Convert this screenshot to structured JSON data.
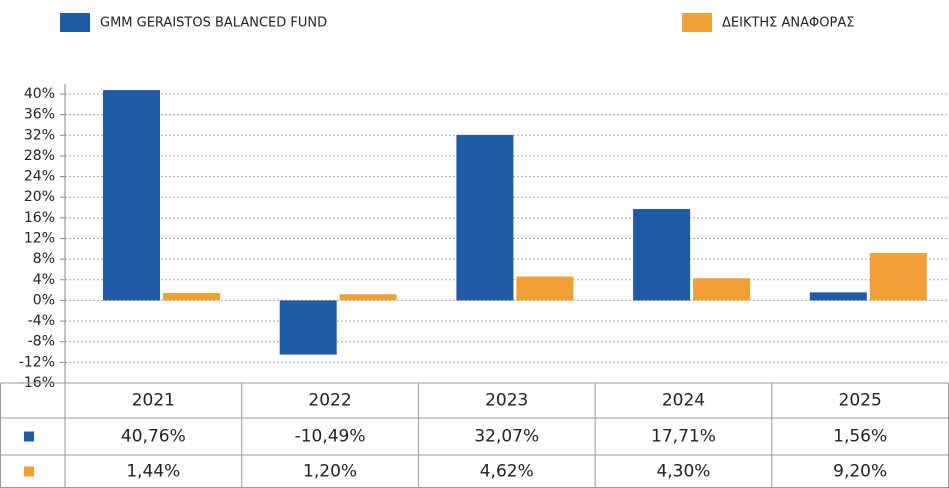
{
  "chart_data": {
    "type": "bar",
    "categories": [
      "2021",
      "2022",
      "2023",
      "2024",
      "2025"
    ],
    "series": [
      {
        "name": "GMM GERAISTOS BALANCED FUND",
        "color": "#1f5aa6",
        "values": [
          40.76,
          -10.49,
          32.07,
          17.71,
          1.56
        ],
        "value_labels": [
          "40,76%",
          "-10,49%",
          "32,07%",
          "17,71%",
          "1,56%"
        ]
      },
      {
        "name": "ΔΕΙΚΤΗΣ ΑΝΑΦΟΡΑΣ",
        "color": "#f0a035",
        "values": [
          1.44,
          1.2,
          4.62,
          4.3,
          9.2
        ],
        "value_labels": [
          "1,44%",
          "1,20%",
          "4,62%",
          "4,30%",
          "9,20%"
        ]
      }
    ],
    "ylim": [
      -16,
      40
    ],
    "yticks": [
      {
        "value": 40,
        "label": "40%"
      },
      {
        "value": 36,
        "label": "36%"
      },
      {
        "value": 32,
        "label": "32%"
      },
      {
        "value": 28,
        "label": "28%"
      },
      {
        "value": 24,
        "label": "24%"
      },
      {
        "value": 20,
        "label": "20%"
      },
      {
        "value": 16,
        "label": "16%"
      },
      {
        "value": 12,
        "label": "12%"
      },
      {
        "value": 8,
        "label": "8%"
      },
      {
        "value": 4,
        "label": "4%"
      },
      {
        "value": 0,
        "label": "0%"
      },
      {
        "value": -4,
        "label": "-4%"
      },
      {
        "value": -8,
        "label": "-8%"
      },
      {
        "value": -12,
        "label": "-12%"
      },
      {
        "value": -16,
        "label": "-16%"
      }
    ],
    "grid": true
  }
}
